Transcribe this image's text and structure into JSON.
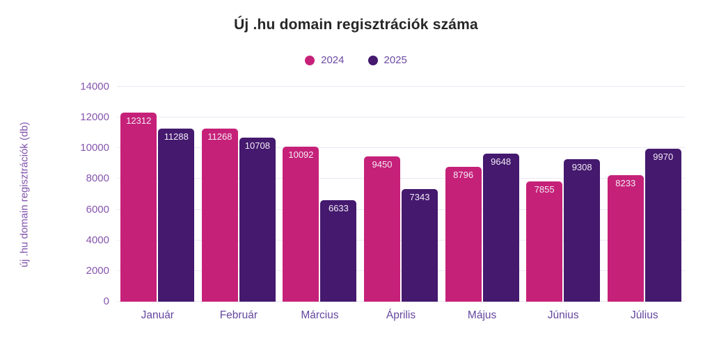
{
  "style": {
    "background": "#ffffff",
    "title_color": "#262626",
    "grid_color": "#ece5f4",
    "y_tick_color": "#8655ad",
    "x_tick_color": "#63469e",
    "legend_text_color": "#6b4aa2",
    "y_axis_title_color": "#8153ab",
    "bar_label_color": "#f3ecf5"
  },
  "chart_data": {
    "type": "bar",
    "title": "Új .hu domain regisztrációk száma",
    "xlabel": "",
    "ylabel": "új .hu domain regisztrációk (db)",
    "categories": [
      "Január",
      "Február",
      "Március",
      "Április",
      "Május",
      "Június",
      "Július"
    ],
    "series": [
      {
        "name": "2024",
        "color": "#c62179",
        "values": [
          12312,
          11268,
          10092,
          9450,
          8796,
          7855,
          8233
        ]
      },
      {
        "name": "2025",
        "color": "#44196e",
        "values": [
          11288,
          10708,
          6633,
          7343,
          9648,
          9308,
          9970
        ]
      }
    ],
    "ylim": [
      0,
      14000
    ],
    "ytick_step": 2000,
    "grid": true,
    "legend_position": "top",
    "bar_labels": true
  }
}
